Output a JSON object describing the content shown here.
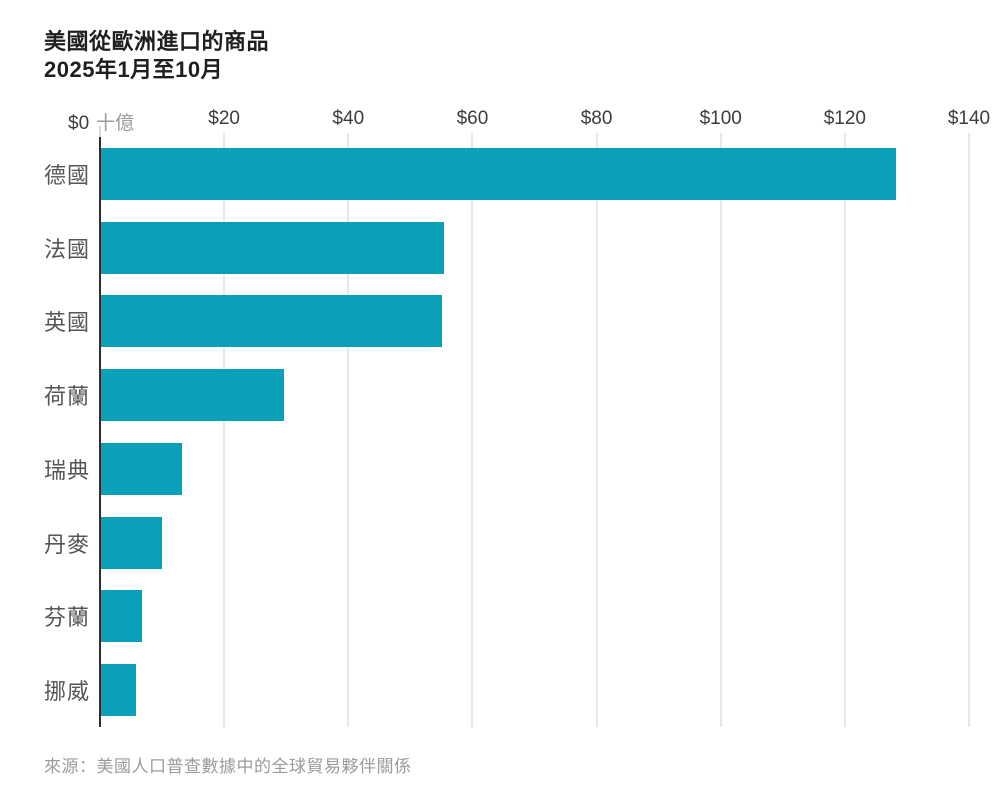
{
  "title": {
    "line1": "美國從歐洲進口的商品",
    "line2": "2025年1月至10月"
  },
  "source": "來源：美國人口普查數據中的全球貿易夥伴關係",
  "colors": {
    "bar": "#0aa0ba",
    "title_text": "#1f1f1f",
    "axis_line": "#2e2e2e",
    "gridline": "#e7e7e7",
    "tick_label": "#3d3d3d",
    "unit_label": "#9c9c9c",
    "category_label": "#565656",
    "source_text": "#9b9b9b"
  },
  "chart_data": {
    "type": "bar",
    "orientation": "horizontal",
    "title": "美國從歐洲進口的商品",
    "subtitle": "2025年1月至10月",
    "categories": [
      "德國",
      "法國",
      "英國",
      "荷蘭",
      "瑞典",
      "丹麥",
      "芬蘭",
      "挪威"
    ],
    "values": [
      128,
      55.2,
      55,
      29.5,
      13,
      9.8,
      6.6,
      5.6
    ],
    "values_unit": "十億美元 (USD billions)",
    "unit_label": "十億",
    "x_ticks": [
      {
        "value": 0,
        "label": "$0"
      },
      {
        "value": 20,
        "label": "$20"
      },
      {
        "value": 40,
        "label": "$40"
      },
      {
        "value": 60,
        "label": "$60"
      },
      {
        "value": 80,
        "label": "$80"
      },
      {
        "value": 100,
        "label": "$100"
      },
      {
        "value": 120,
        "label": "$120"
      },
      {
        "value": 140,
        "label": "$140"
      }
    ],
    "xlim": [
      0,
      140
    ],
    "grid": true,
    "legend": false,
    "bar_color": "#0aa0ba"
  }
}
